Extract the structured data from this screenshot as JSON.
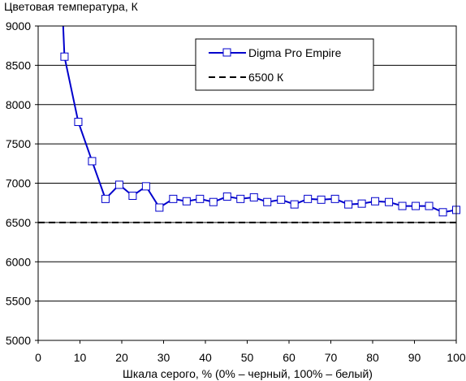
{
  "chart_data": {
    "type": "line",
    "title": "Цветовая температура, К",
    "xlabel": "Шкала серого, % (0% – черный, 100% – белый)",
    "ylabel": "",
    "xlim": [
      0,
      100
    ],
    "ylim": [
      5000,
      9000
    ],
    "x_ticks": [
      0,
      10,
      20,
      30,
      40,
      50,
      60,
      70,
      80,
      90,
      100
    ],
    "y_ticks": [
      5000,
      5500,
      6000,
      6500,
      7000,
      7500,
      8000,
      8500,
      9000
    ],
    "grid": "horizontal",
    "legend_position": "top-right",
    "series": [
      {
        "name": "Digma Pro Empire",
        "color": "#0000cc",
        "marker": "square",
        "x": [
          5.9,
          6.3,
          9.6,
          12.9,
          16.1,
          19.4,
          22.6,
          25.8,
          29.0,
          32.3,
          35.5,
          38.7,
          41.9,
          45.2,
          48.4,
          51.6,
          54.8,
          58.1,
          61.3,
          64.5,
          67.7,
          71.0,
          74.2,
          77.4,
          80.6,
          83.9,
          87.1,
          90.3,
          93.5,
          96.8,
          100
        ],
        "y": [
          9100,
          8610,
          7780,
          7280,
          6800,
          6980,
          6840,
          6960,
          6690,
          6800,
          6770,
          6800,
          6760,
          6830,
          6800,
          6820,
          6760,
          6790,
          6730,
          6800,
          6790,
          6800,
          6730,
          6740,
          6770,
          6760,
          6710,
          6710,
          6710,
          6630,
          6660
        ],
        "marker_from_index": 1
      },
      {
        "name": "6500 К",
        "color": "#000000",
        "dash": "dashed",
        "x": [
          0,
          100
        ],
        "y": [
          6500,
          6500
        ]
      }
    ]
  }
}
